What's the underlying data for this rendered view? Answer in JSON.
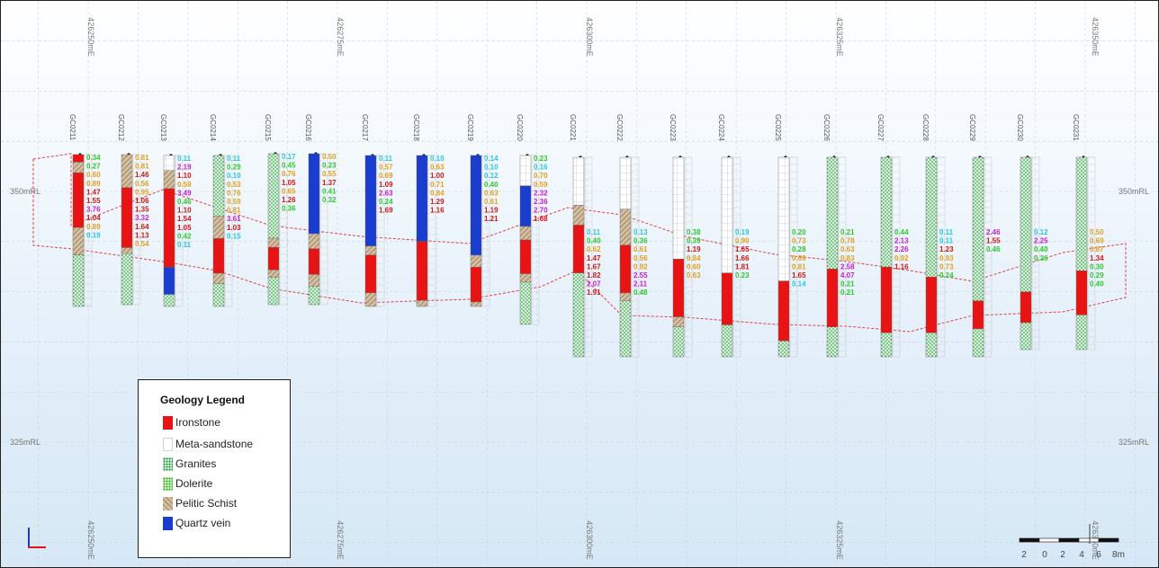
{
  "section": {
    "eastings": [
      "426250mE",
      "426275mE",
      "426300mE",
      "426325mE",
      "426350mE"
    ],
    "rl_labels": [
      "350mRL",
      "325mRL"
    ]
  },
  "holes": [
    {
      "id": "GC0211",
      "segments": [
        {
          "rock": "ironstone",
          "from": 0,
          "to": 0.05
        },
        {
          "rock": "pelitic",
          "from": 0.05,
          "to": 0.12
        },
        {
          "rock": "ironstone",
          "from": 0.12,
          "to": 0.48
        },
        {
          "rock": "pelitic",
          "from": 0.48,
          "to": 0.66
        },
        {
          "rock": "granite",
          "from": 0.66,
          "to": 1
        }
      ],
      "assays": [
        "0.34",
        "0.27",
        "0.60",
        "0.89",
        "1.47",
        "1.55",
        "3.76",
        "1.04",
        "0.89",
        "0.19"
      ]
    },
    {
      "id": "GC0212",
      "segments": [
        {
          "rock": "pelitic",
          "from": 0,
          "to": 0.22
        },
        {
          "rock": "ironstone",
          "from": 0.22,
          "to": 0.62
        },
        {
          "rock": "pelitic",
          "from": 0.62,
          "to": 0.66
        },
        {
          "rock": "granite",
          "from": 0.66,
          "to": 1
        }
      ],
      "assays": [
        "0.81",
        "0.81",
        "1.46",
        "0.56",
        "0.95",
        "1.06",
        "1.35",
        "3.32",
        "1.64",
        "1.13",
        "0.54"
      ]
    },
    {
      "id": "GC0213",
      "segments": [
        {
          "rock": "meta",
          "from": 0,
          "to": 0.1
        },
        {
          "rock": "pelitic",
          "from": 0.1,
          "to": 0.22
        },
        {
          "rock": "ironstone",
          "from": 0.22,
          "to": 0.74
        },
        {
          "rock": "quartz",
          "from": 0.74,
          "to": 0.92
        },
        {
          "rock": "granite",
          "from": 0.92,
          "to": 1
        }
      ],
      "assays": [
        "0.11",
        "2.19",
        "1.10",
        "0.59",
        "3.49",
        "0.46",
        "1.10",
        "1.54",
        "1.05",
        "0.42",
        "0.11"
      ]
    },
    {
      "id": "GC0214",
      "segments": [
        {
          "rock": "granite",
          "from": 0,
          "to": 0.4
        },
        {
          "rock": "pelitic",
          "from": 0.4,
          "to": 0.55
        },
        {
          "rock": "ironstone",
          "from": 0.55,
          "to": 0.78
        },
        {
          "rock": "pelitic",
          "from": 0.78,
          "to": 0.85
        },
        {
          "rock": "granite",
          "from": 0.85,
          "to": 1
        }
      ],
      "assays": [
        "0.11",
        "0.29",
        "0.10",
        "0.53",
        "0.76",
        "0.59",
        "0.81",
        "3.61",
        "1.03",
        "0.15"
      ]
    },
    {
      "id": "GC0215",
      "segments": [
        {
          "rock": "granite",
          "from": 0,
          "to": 0.56
        },
        {
          "rock": "pelitic",
          "from": 0.56,
          "to": 0.62
        },
        {
          "rock": "ironstone",
          "from": 0.62,
          "to": 0.77
        },
        {
          "rock": "pelitic",
          "from": 0.77,
          "to": 0.82
        },
        {
          "rock": "granite",
          "from": 0.82,
          "to": 1
        }
      ],
      "assays": [
        "0.17",
        "0.45",
        "0.76",
        "1.05",
        "0.65",
        "1.26",
        "0.36"
      ]
    },
    {
      "id": "GC0216",
      "segments": [
        {
          "rock": "quartz",
          "from": 0,
          "to": 0.53
        },
        {
          "rock": "pelitic",
          "from": 0.53,
          "to": 0.63
        },
        {
          "rock": "ironstone",
          "from": 0.63,
          "to": 0.8
        },
        {
          "rock": "pelitic",
          "from": 0.8,
          "to": 0.88
        },
        {
          "rock": "granite",
          "from": 0.88,
          "to": 1
        }
      ],
      "assays": [
        "0.50",
        "0.23",
        "0.55",
        "1.37",
        "0.41",
        "0.32"
      ]
    },
    {
      "id": "GC0217",
      "segments": [
        {
          "rock": "quartz",
          "from": 0,
          "to": 0.6
        },
        {
          "rock": "pelitic",
          "from": 0.6,
          "to": 0.66
        },
        {
          "rock": "ironstone",
          "from": 0.66,
          "to": 0.91
        },
        {
          "rock": "pelitic",
          "from": 0.91,
          "to": 1
        }
      ],
      "assays": [
        "0.11",
        "0.57",
        "0.69",
        "1.09",
        "2.63",
        "0.24",
        "1.69"
      ]
    },
    {
      "id": "GC0218",
      "segments": [
        {
          "rock": "quartz",
          "from": 0,
          "to": 0.57
        },
        {
          "rock": "ironstone",
          "from": 0.57,
          "to": 0.96
        },
        {
          "rock": "pelitic",
          "from": 0.96,
          "to": 1
        }
      ],
      "assays": [
        "0.10",
        "0.63",
        "1.00",
        "0.71",
        "0.84",
        "1.29",
        "1.16"
      ]
    },
    {
      "id": "GC0219",
      "segments": [
        {
          "rock": "quartz",
          "from": 0,
          "to": 0.66
        },
        {
          "rock": "pelitic",
          "from": 0.66,
          "to": 0.74
        },
        {
          "rock": "ironstone",
          "from": 0.74,
          "to": 0.97
        },
        {
          "rock": "pelitic",
          "from": 0.97,
          "to": 1
        }
      ],
      "assays": [
        "0.14",
        "0.10",
        "0.12",
        "0.40",
        "0.63",
        "0.61",
        "1.19",
        "1.21"
      ]
    },
    {
      "id": "GC0220",
      "segments": [
        {
          "rock": "meta",
          "from": 0,
          "to": 0.18
        },
        {
          "rock": "quartz",
          "from": 0.18,
          "to": 0.42
        },
        {
          "rock": "pelitic",
          "from": 0.42,
          "to": 0.5
        },
        {
          "rock": "ironstone",
          "from": 0.5,
          "to": 0.7
        },
        {
          "rock": "pelitic",
          "from": 0.7,
          "to": 0.75
        },
        {
          "rock": "granite",
          "from": 0.75,
          "to": 1
        }
      ],
      "assays": [
        "0.23",
        "0.16",
        "0.70",
        "0.59",
        "2.32",
        "2.36",
        "2.70",
        "1.68"
      ]
    },
    {
      "id": "GC0221",
      "segments": [
        {
          "rock": "meta",
          "from": 0,
          "to": 0.24
        },
        {
          "rock": "pelitic",
          "from": 0.24,
          "to": 0.34
        },
        {
          "rock": "ironstone",
          "from": 0.34,
          "to": 0.58
        },
        {
          "rock": "granite",
          "from": 0.58,
          "to": 1
        }
      ],
      "assays": [
        "0.11",
        "0.40",
        "0.62",
        "1.47",
        "1.67",
        "1.82",
        "2.07",
        "1.91"
      ]
    },
    {
      "id": "GC0222",
      "segments": [
        {
          "rock": "meta",
          "from": 0,
          "to": 0.26
        },
        {
          "rock": "pelitic",
          "from": 0.26,
          "to": 0.44
        },
        {
          "rock": "ironstone",
          "from": 0.44,
          "to": 0.68
        },
        {
          "rock": "pelitic",
          "from": 0.68,
          "to": 0.72
        },
        {
          "rock": "granite",
          "from": 0.72,
          "to": 1
        }
      ],
      "assays": [
        "0.13",
        "0.36",
        "0.61",
        "0.56",
        "0.92",
        "2.55",
        "2.11",
        "0.48"
      ]
    },
    {
      "id": "GC0223",
      "segments": [
        {
          "rock": "meta",
          "from": 0,
          "to": 0.51
        },
        {
          "rock": "ironstone",
          "from": 0.51,
          "to": 0.8
        },
        {
          "rock": "pelitic",
          "from": 0.8,
          "to": 0.85
        },
        {
          "rock": "granite",
          "from": 0.85,
          "to": 1
        }
      ],
      "assays": [
        "0.38",
        "0.39",
        "1.19",
        "0.84",
        "0.60",
        "0.63"
      ]
    },
    {
      "id": "GC0224",
      "segments": [
        {
          "rock": "meta",
          "from": 0,
          "to": 0.58
        },
        {
          "rock": "ironstone",
          "from": 0.58,
          "to": 0.84
        },
        {
          "rock": "granite",
          "from": 0.84,
          "to": 1
        }
      ],
      "assays": [
        "0.19",
        "0.90",
        "1.65",
        "1.66",
        "1.81",
        "0.23"
      ]
    },
    {
      "id": "GC0225",
      "segments": [
        {
          "rock": "meta",
          "from": 0,
          "to": 0.62
        },
        {
          "rock": "ironstone",
          "from": 0.62,
          "to": 0.92
        },
        {
          "rock": "granite",
          "from": 0.92,
          "to": 1
        }
      ],
      "assays": [
        "0.20",
        "0.73",
        "0.28",
        "0.69",
        "0.81",
        "1.65",
        "0.14"
      ]
    },
    {
      "id": "GC0226",
      "segments": [
        {
          "rock": "granite",
          "from": 0,
          "to": 0.56
        },
        {
          "rock": "ironstone",
          "from": 0.56,
          "to": 0.85
        },
        {
          "rock": "granite",
          "from": 0.85,
          "to": 1
        }
      ],
      "assays": [
        "0.21",
        "0.78",
        "0.63",
        "0.83",
        "2.58",
        "4.07",
        "0.21",
        "0.21"
      ]
    },
    {
      "id": "GC0227",
      "segments": [
        {
          "rock": "granite",
          "from": 0,
          "to": 0.55
        },
        {
          "rock": "ironstone",
          "from": 0.55,
          "to": 0.88
        },
        {
          "rock": "granite",
          "from": 0.88,
          "to": 1
        }
      ],
      "assays": [
        "0.44",
        "2.13",
        "2.26",
        "0.92",
        "1.16"
      ]
    },
    {
      "id": "GC0228",
      "segments": [
        {
          "rock": "granite",
          "from": 0,
          "to": 0.6
        },
        {
          "rock": "ironstone",
          "from": 0.6,
          "to": 0.88
        },
        {
          "rock": "granite",
          "from": 0.88,
          "to": 1
        }
      ],
      "assays": [
        "0.11",
        "0.11",
        "1.23",
        "0.93",
        "0.73",
        "0.24"
      ]
    },
    {
      "id": "GC0229",
      "segments": [
        {
          "rock": "granite",
          "from": 0,
          "to": 0.72
        },
        {
          "rock": "ironstone",
          "from": 0.72,
          "to": 0.86
        },
        {
          "rock": "granite",
          "from": 0.86,
          "to": 1
        }
      ],
      "assays": [
        "2.46",
        "1.55",
        "0.46"
      ]
    },
    {
      "id": "GC0230",
      "segments": [
        {
          "rock": "granite",
          "from": 0,
          "to": 0.7
        },
        {
          "rock": "ironstone",
          "from": 0.7,
          "to": 0.86
        },
        {
          "rock": "granite",
          "from": 0.86,
          "to": 1
        }
      ],
      "assays": [
        "0.12",
        "2.25",
        "0.40",
        "0.36"
      ]
    },
    {
      "id": "GC0231",
      "segments": [
        {
          "rock": "granite",
          "from": 0,
          "to": 0.59
        },
        {
          "rock": "ironstone",
          "from": 0.59,
          "to": 0.82
        },
        {
          "rock": "granite",
          "from": 0.82,
          "to": 1
        }
      ],
      "assays": [
        "0.50",
        "0.69",
        "0.87",
        "1.34",
        "0.30",
        "0.29",
        "0.40"
      ]
    }
  ],
  "legend": {
    "title": "Geology Legend",
    "items": [
      {
        "label": "Ironstone",
        "icon": "ironstone-swatch",
        "color": "#e81313"
      },
      {
        "label": "Meta-sandstone",
        "icon": "meta-sandstone-swatch",
        "color": "#ffffff"
      },
      {
        "label": "Granites",
        "icon": "granites-swatch",
        "color": "#d9f2da"
      },
      {
        "label": "Dolerite",
        "icon": "dolerite-swatch",
        "color": "#c8efb0"
      },
      {
        "label": "Pelitic Schist",
        "icon": "pelitic-schist-swatch",
        "color": "#b59a78"
      },
      {
        "label": "Quartz vein",
        "icon": "quartz-vein-swatch",
        "color": "#1a3ccf"
      }
    ]
  },
  "scale_bar": {
    "labels": [
      "2",
      "0",
      "2",
      "4",
      "6",
      "8m"
    ]
  },
  "colors": {
    "ironstone": "#e81313",
    "quartz": "#1a3ccf",
    "granite": "#d9f2da",
    "pelitic": "#b59a78",
    "meta": "#ffffff",
    "outline": "#e04040"
  }
}
